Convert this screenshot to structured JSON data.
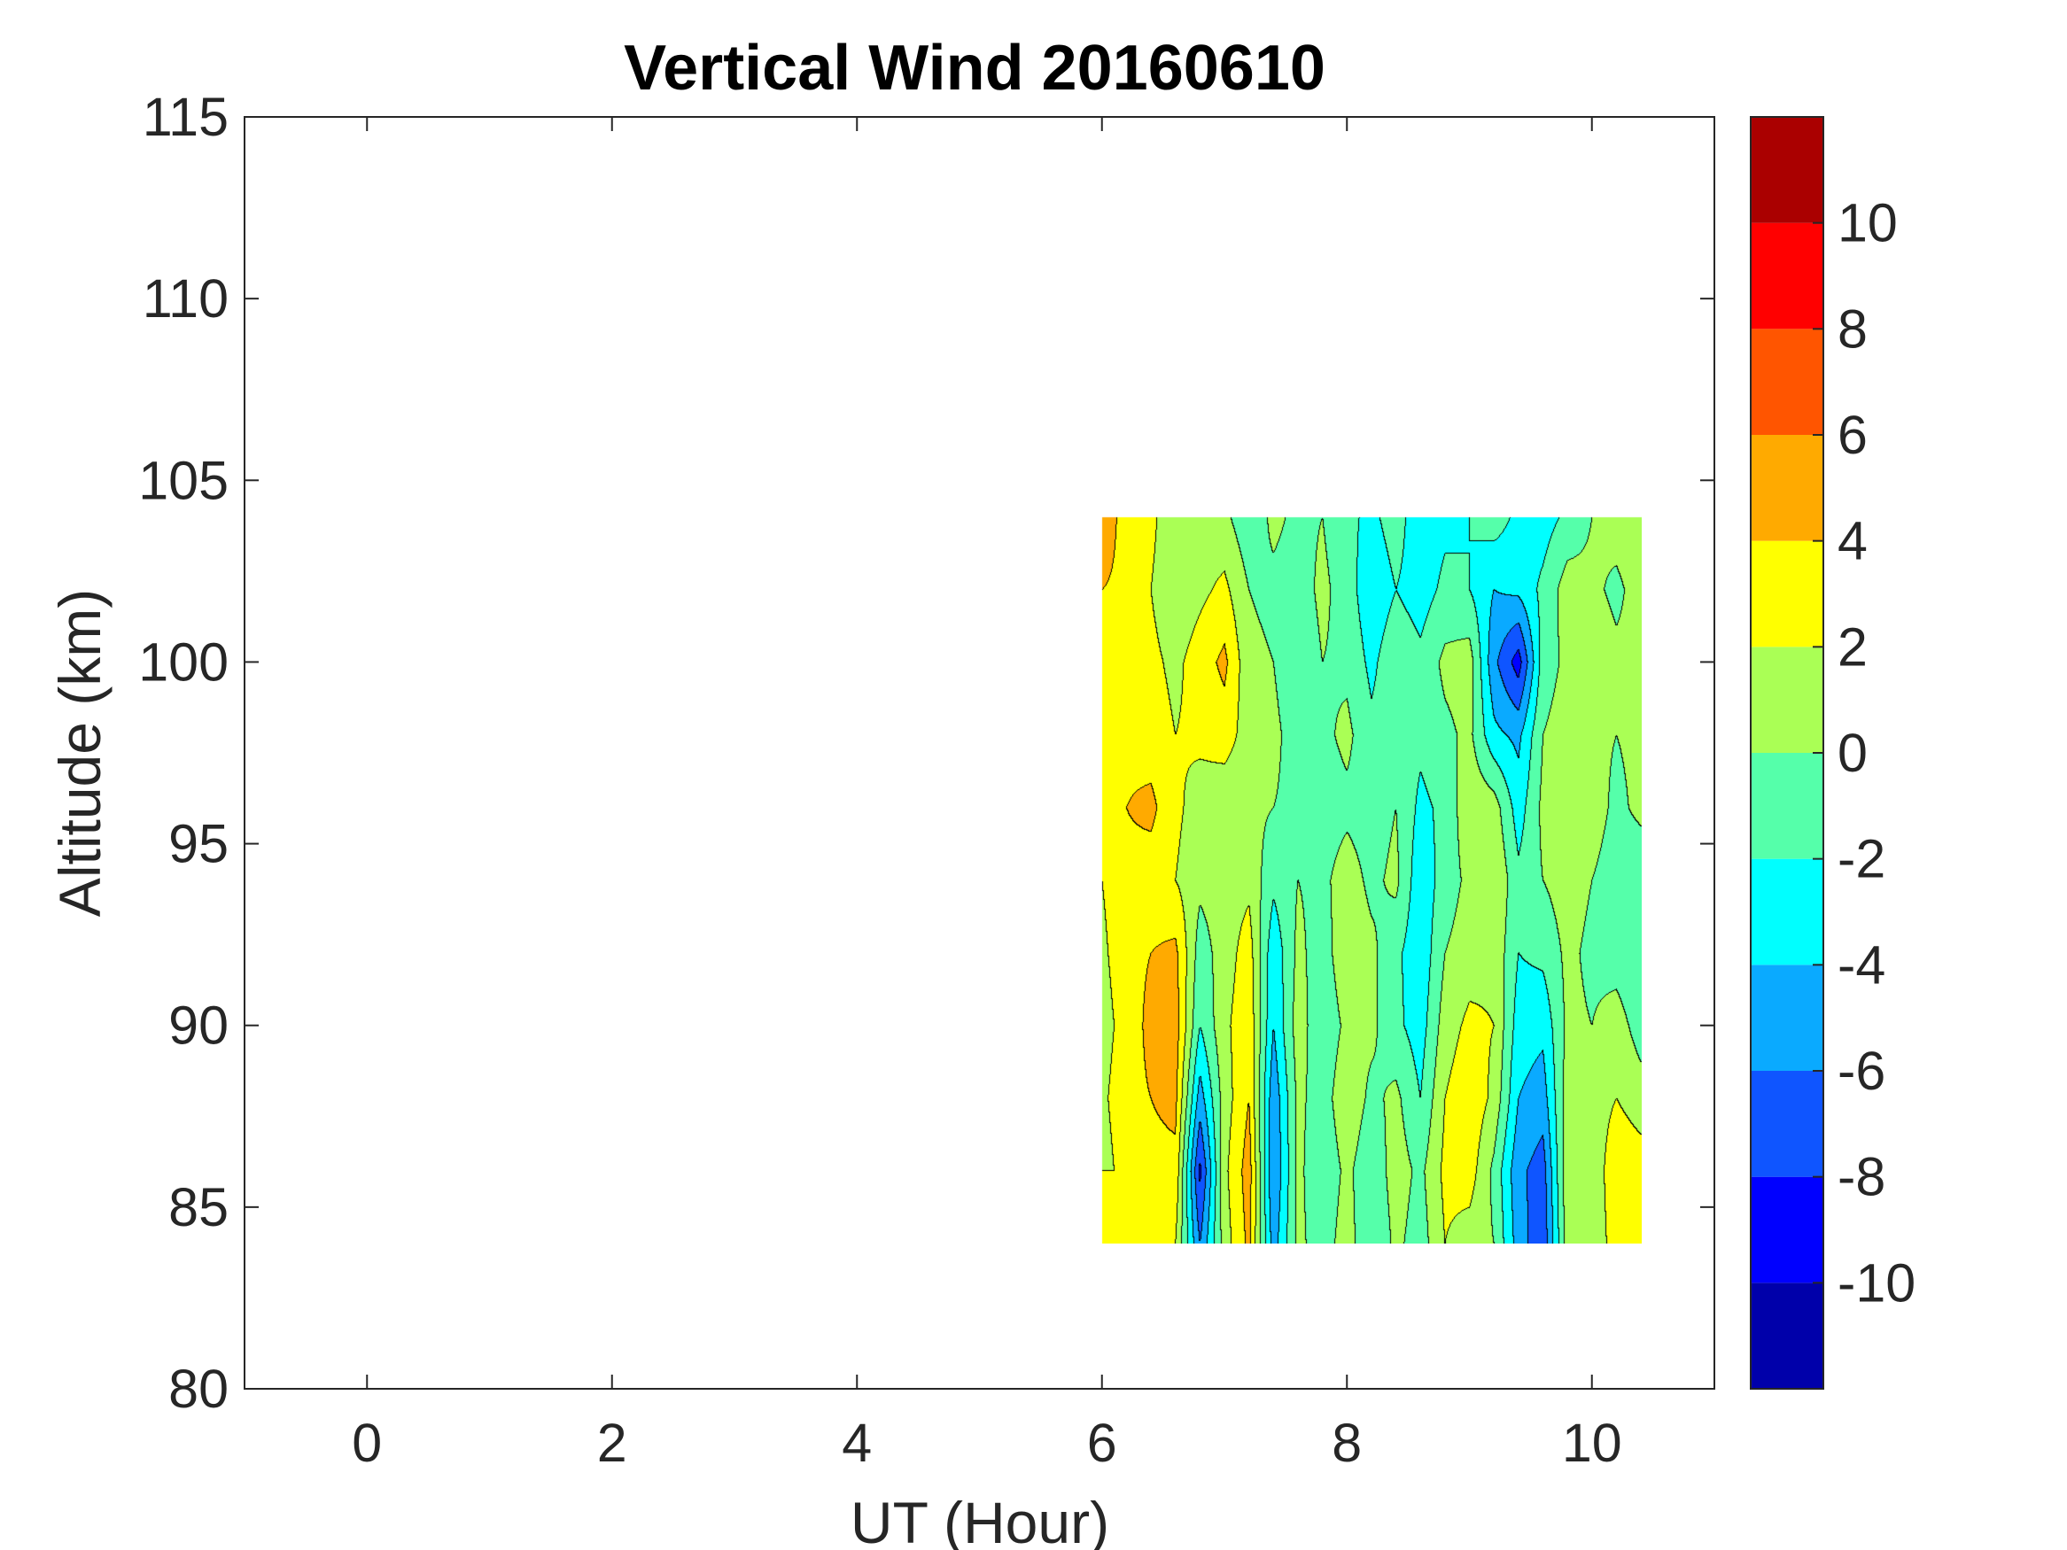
{
  "chart_data": {
    "type": "heatmap",
    "subtype": "filled-contour",
    "title": "Vertical Wind 20160610",
    "xlabel": "UT (Hour)",
    "ylabel": "Altitude (km)",
    "xlim": [
      -1,
      11
    ],
    "ylim": [
      80,
      115
    ],
    "xticks": [
      0,
      2,
      4,
      6,
      8,
      10
    ],
    "yticks": [
      80,
      85,
      90,
      95,
      100,
      105,
      110,
      115
    ],
    "grid": false,
    "colorbar": {
      "location": "right",
      "clim": [
        -12,
        12
      ],
      "ticks": [
        -10,
        -8,
        -6,
        -4,
        -2,
        0,
        2,
        4,
        6,
        8,
        10
      ],
      "levels": [
        -12,
        -10,
        -8,
        -6,
        -4,
        -2,
        0,
        2,
        4,
        6,
        8,
        10,
        12
      ],
      "colors": [
        "#0000aa",
        "#0000ff",
        "#0f55ff",
        "#0aaaff",
        "#00ffff",
        "#55ffaa",
        "#aaff55",
        "#ffff00",
        "#ffaa00",
        "#ff5500",
        "#ff0000",
        "#aa0000"
      ]
    },
    "data_extent": {
      "x": [
        6.0,
        10.4
      ],
      "y": [
        84,
        104
      ]
    },
    "x": [
      6.0,
      6.2,
      6.4,
      6.6,
      6.8,
      7.0,
      7.2,
      7.4,
      7.6,
      7.8,
      8.0,
      8.2,
      8.4,
      8.6,
      8.8,
      9.0,
      9.2,
      9.4,
      9.6,
      9.8,
      10.0,
      10.2,
      10.4
    ],
    "y": [
      84,
      86,
      88,
      90,
      92,
      94,
      96,
      98,
      100,
      102,
      104
    ],
    "z": [
      [
        null,
        2.5,
        3.0,
        2.0,
        -6.0,
        1.0,
        4.5,
        -5.0,
        0.5,
        -1.0,
        1.0,
        -2.0,
        0.5,
        -1.0,
        2.0,
        1.0,
        0.0,
        -5.0,
        -7.5,
        1.0,
        0.5,
        3.0,
        3.5
      ],
      [
        1.0,
        3.0,
        3.5,
        3.5,
        -8.5,
        1.5,
        5.0,
        -6.0,
        0.5,
        -1.5,
        0.5,
        -1.5,
        1.0,
        -0.5,
        2.5,
        3.0,
        -0.5,
        -5.5,
        -7.0,
        1.5,
        0.5,
        3.5,
        3.0
      ],
      [
        1.5,
        3.5,
        4.0,
        4.5,
        -5.0,
        1.0,
        4.0,
        -5.5,
        0.5,
        -1.0,
        1.5,
        -0.5,
        0.5,
        -2.0,
        2.0,
        3.5,
        1.5,
        -4.0,
        -5.0,
        1.0,
        1.0,
        2.0,
        1.0
      ],
      [
        1.0,
        3.0,
        4.5,
        5.0,
        -2.0,
        1.5,
        3.5,
        -4.0,
        1.0,
        -1.5,
        0.5,
        0.5,
        -1.5,
        -3.0,
        1.0,
        2.5,
        2.0,
        -3.0,
        -3.5,
        0.5,
        0.0,
        1.0,
        -1.0
      ],
      [
        1.5,
        3.5,
        4.0,
        4.5,
        -1.0,
        1.0,
        3.0,
        -3.5,
        0.5,
        -1.0,
        1.5,
        0.5,
        -1.5,
        -3.5,
        0.0,
        1.0,
        1.5,
        -2.0,
        -1.5,
        0.5,
        -0.5,
        -1.0,
        -2.0
      ],
      [
        2.0,
        3.5,
        3.0,
        2.0,
        0.5,
        1.0,
        1.5,
        -1.5,
        0.0,
        -0.5,
        1.0,
        -0.5,
        0.5,
        -3.5,
        -1.0,
        0.5,
        2.0,
        -1.5,
        0.0,
        1.0,
        0.0,
        -1.0,
        -1.5
      ],
      [
        2.5,
        4.0,
        4.5,
        2.5,
        1.0,
        0.5,
        0.5,
        0.0,
        -0.5,
        -1.0,
        -0.5,
        -1.0,
        0.0,
        -2.5,
        -1.5,
        1.5,
        1.0,
        -3.0,
        0.5,
        0.5,
        1.0,
        -0.5,
        0.5
      ],
      [
        3.0,
        3.5,
        3.0,
        2.0,
        2.5,
        3.0,
        1.0,
        0.5,
        -1.0,
        -0.5,
        0.5,
        -1.5,
        -1.0,
        -1.5,
        -0.5,
        0.5,
        -3.5,
        -4.5,
        0.0,
        1.0,
        0.5,
        0.0,
        0.5
      ],
      [
        3.5,
        3.0,
        2.5,
        1.5,
        3.0,
        4.5,
        0.5,
        0.0,
        -1.5,
        0.0,
        -0.5,
        -2.5,
        -0.5,
        -1.5,
        0.5,
        1.0,
        -5.5,
        -9.0,
        -1.0,
        0.5,
        1.5,
        0.5,
        0.5
      ],
      [
        4.0,
        3.5,
        2.0,
        0.5,
        1.5,
        2.5,
        0.0,
        -0.5,
        -1.0,
        0.5,
        -1.0,
        -3.5,
        -2.0,
        -3.0,
        -1.5,
        -2.0,
        -4.0,
        -3.5,
        -1.5,
        1.0,
        0.5,
        -0.5,
        1.0
      ],
      [
        5.5,
        3.0,
        2.5,
        0.5,
        1.0,
        0.5,
        -1.5,
        0.5,
        -0.5,
        0.0,
        -1.5,
        -2.5,
        -1.0,
        -3.5,
        -2.5,
        -2.0,
        -1.0,
        -2.5,
        -3.0,
        -1.5,
        0.0,
        1.0,
        2.0
      ]
    ]
  }
}
